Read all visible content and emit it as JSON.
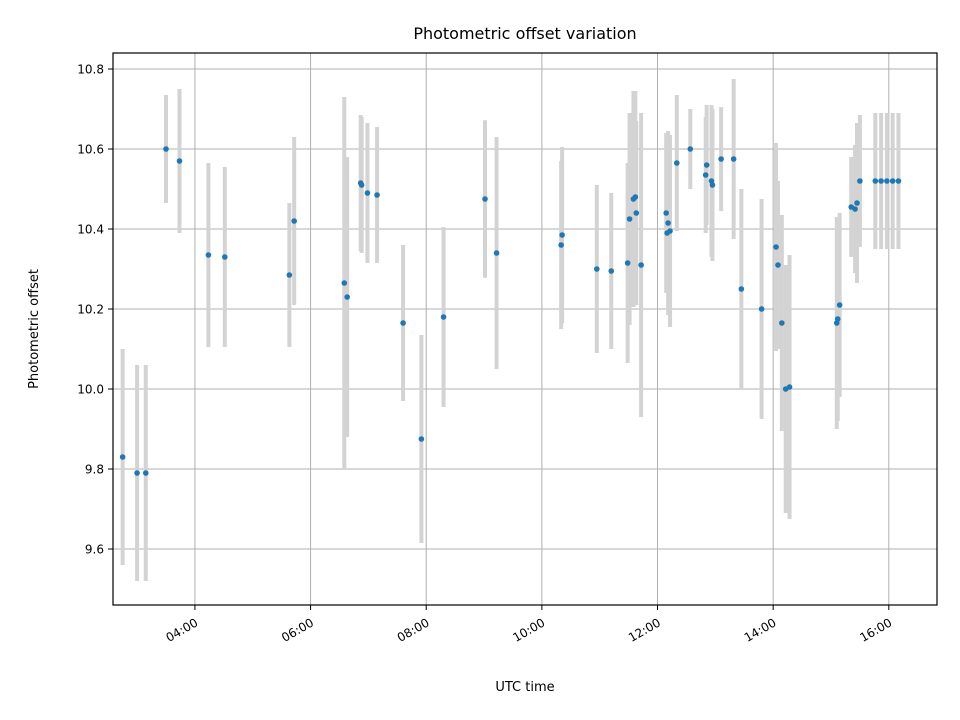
{
  "chart_data": {
    "type": "scatter",
    "title": "Photometric offset variation",
    "xlabel": "UTC time",
    "ylabel": "Photometric offset",
    "x_unit": "UTC time (HH:MM, same day)",
    "xlim": [
      "02:35",
      "16:50"
    ],
    "ylim": [
      9.46,
      10.84
    ],
    "x_ticks": [
      "04:00",
      "06:00",
      "08:00",
      "10:00",
      "12:00",
      "14:00",
      "16:00"
    ],
    "y_ticks": [
      "9.6",
      "9.8",
      "10.0",
      "10.2",
      "10.4",
      "10.6",
      "10.8"
    ],
    "grid": true,
    "legend": "none",
    "colors": {
      "point": "#1f77b4",
      "errorbar": "#d3d3d3",
      "grid": "#b0b0b0"
    },
    "x_tick_rotation_deg": 30,
    "points": [
      {
        "t": "02:45",
        "y": 9.83,
        "err": 0.27
      },
      {
        "t": "03:00",
        "y": 9.79,
        "err": 0.27
      },
      {
        "t": "03:09",
        "y": 9.79,
        "err": 0.27
      },
      {
        "t": "03:30",
        "y": 10.6,
        "err": 0.135
      },
      {
        "t": "03:44",
        "y": 10.57,
        "err": 0.18
      },
      {
        "t": "04:14",
        "y": 10.335,
        "err": 0.23
      },
      {
        "t": "04:31",
        "y": 10.33,
        "err": 0.225
      },
      {
        "t": "05:38",
        "y": 10.285,
        "err": 0.18
      },
      {
        "t": "05:43",
        "y": 10.42,
        "err": 0.21
      },
      {
        "t": "06:35",
        "y": 10.265,
        "err": 0.465
      },
      {
        "t": "06:38",
        "y": 10.23,
        "err": 0.35
      },
      {
        "t": "06:52",
        "y": 10.515,
        "err": 0.17
      },
      {
        "t": "06:53",
        "y": 10.51,
        "err": 0.17
      },
      {
        "t": "06:59",
        "y": 10.49,
        "err": 0.175
      },
      {
        "t": "07:09",
        "y": 10.485,
        "err": 0.17
      },
      {
        "t": "07:36",
        "y": 10.165,
        "err": 0.195
      },
      {
        "t": "07:55",
        "y": 9.875,
        "err": 0.26
      },
      {
        "t": "08:18",
        "y": 10.18,
        "err": 0.225
      },
      {
        "t": "09:01",
        "y": 10.475,
        "err": 0.197
      },
      {
        "t": "09:13",
        "y": 10.34,
        "err": 0.29
      },
      {
        "t": "10:20",
        "y": 10.36,
        "err": 0.21
      },
      {
        "t": "10:21",
        "y": 10.385,
        "err": 0.22
      },
      {
        "t": "10:57",
        "y": 10.3,
        "err": 0.21
      },
      {
        "t": "11:12",
        "y": 10.295,
        "err": 0.195
      },
      {
        "t": "11:29",
        "y": 10.315,
        "err": 0.25
      },
      {
        "t": "11:31",
        "y": 10.425,
        "err": 0.265
      },
      {
        "t": "11:35",
        "y": 10.475,
        "err": 0.27
      },
      {
        "t": "11:37",
        "y": 10.48,
        "err": 0.265
      },
      {
        "t": "11:38",
        "y": 10.44,
        "err": 0.23
      },
      {
        "t": "11:43",
        "y": 10.31,
        "err": 0.38
      },
      {
        "t": "12:09",
        "y": 10.44,
        "err": 0.2
      },
      {
        "t": "12:10",
        "y": 10.39,
        "err": 0.15
      },
      {
        "t": "12:11",
        "y": 10.415,
        "err": 0.23
      },
      {
        "t": "12:13",
        "y": 10.395,
        "err": 0.24
      },
      {
        "t": "12:20",
        "y": 10.565,
        "err": 0.17
      },
      {
        "t": "12:34",
        "y": 10.6,
        "err": 0.1
      },
      {
        "t": "12:50",
        "y": 10.535,
        "err": 0.145
      },
      {
        "t": "12:51",
        "y": 10.56,
        "err": 0.15
      },
      {
        "t": "12:56",
        "y": 10.52,
        "err": 0.19
      },
      {
        "t": "12:57",
        "y": 10.51,
        "err": 0.19
      },
      {
        "t": "13:06",
        "y": 10.575,
        "err": 0.13
      },
      {
        "t": "13:19",
        "y": 10.575,
        "err": 0.2
      },
      {
        "t": "13:27",
        "y": 10.25,
        "err": 0.25
      },
      {
        "t": "13:48",
        "y": 10.2,
        "err": 0.275
      },
      {
        "t": "14:03",
        "y": 10.355,
        "err": 0.26
      },
      {
        "t": "14:05",
        "y": 10.31,
        "err": 0.21
      },
      {
        "t": "14:09",
        "y": 10.165,
        "err": 0.27
      },
      {
        "t": "14:13",
        "y": 10.0,
        "err": 0.31
      },
      {
        "t": "14:17",
        "y": 10.005,
        "err": 0.33
      },
      {
        "t": "15:06",
        "y": 10.165,
        "err": 0.265
      },
      {
        "t": "15:07",
        "y": 10.175,
        "err": 0.255
      },
      {
        "t": "15:09",
        "y": 10.21,
        "err": 0.23
      },
      {
        "t": "15:21",
        "y": 10.455,
        "err": 0.125
      },
      {
        "t": "15:25",
        "y": 10.45,
        "err": 0.16
      },
      {
        "t": "15:27",
        "y": 10.465,
        "err": 0.2
      },
      {
        "t": "15:30",
        "y": 10.52,
        "err": 0.165
      },
      {
        "t": "15:46",
        "y": 10.52,
        "err": 0.17
      },
      {
        "t": "15:52",
        "y": 10.52,
        "err": 0.17
      },
      {
        "t": "15:58",
        "y": 10.52,
        "err": 0.17
      },
      {
        "t": "16:04",
        "y": 10.52,
        "err": 0.17
      },
      {
        "t": "16:10",
        "y": 10.52,
        "err": 0.17
      }
    ]
  }
}
